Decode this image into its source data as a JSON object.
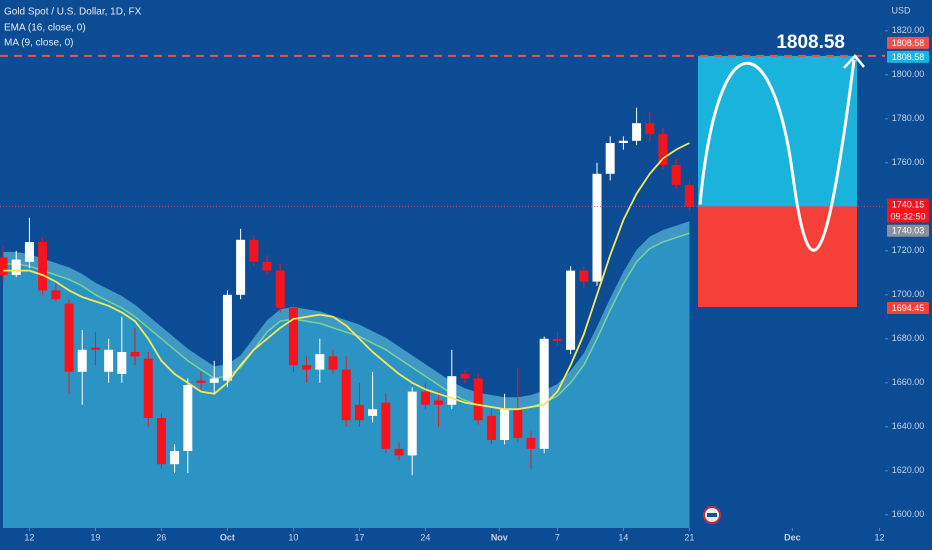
{
  "chart_data": {
    "type": "candlestick",
    "title": "Gold Spot / U.S. Dollar, 1D, FX",
    "indicator_labels": [
      "EMA (16, close, 0)",
      "MA (9, close, 0)"
    ],
    "currency": "USD",
    "up_color": "#ffffff",
    "down_color": "#f7131c",
    "xlim": [
      -0.23,
      66.82
    ],
    "xticks": [
      {
        "value": 2,
        "label": "12"
      },
      {
        "value": 7,
        "label": "19"
      },
      {
        "value": 12,
        "label": "26"
      },
      {
        "value": 17,
        "label": "Oct"
      },
      {
        "value": 22,
        "label": "10"
      },
      {
        "value": 27,
        "label": "17"
      },
      {
        "value": 32,
        "label": "24"
      },
      {
        "value": 37.6,
        "label": "Nov"
      },
      {
        "value": 42,
        "label": "7"
      },
      {
        "value": 47,
        "label": "14"
      },
      {
        "value": 52,
        "label": "21"
      },
      {
        "value": 59.8,
        "label": "Dec"
      },
      {
        "value": 66.4,
        "label": "12"
      }
    ],
    "ylim": [
      1594,
      1834
    ],
    "yticks": [
      {
        "value": 1600,
        "label": "1600.00"
      },
      {
        "value": 1620,
        "label": "1620.00"
      },
      {
        "value": 1640,
        "label": "1640.00"
      },
      {
        "value": 1660,
        "label": "1660.00"
      },
      {
        "value": 1680,
        "label": "1680.00"
      },
      {
        "value": 1700,
        "label": "1700.00"
      },
      {
        "value": 1720,
        "label": "1720.00"
      },
      {
        "value": 1760,
        "label": "1760.00"
      },
      {
        "value": 1780,
        "label": "1780.00"
      },
      {
        "value": 1800,
        "label": "1800.00"
      },
      {
        "value": 1820,
        "label": "1820.00"
      }
    ],
    "open": [
      1717,
      1709,
      1715,
      1724,
      1702,
      1696,
      1665,
      1676,
      1665,
      1664,
      1674,
      1671,
      1644,
      1623,
      1629,
      1661,
      1660,
      1661,
      1700,
      1725,
      1715,
      1711,
      1694,
      1668,
      1666,
      1672,
      1666,
      1650,
      1645,
      1651,
      1630,
      1627,
      1656,
      1652,
      1650,
      1664,
      1662,
      1645,
      1634,
      1648,
      1635,
      1630,
      1680,
      1675,
      1711,
      1706,
      1755,
      1769,
      1770,
      1778,
      1773,
      1759,
      1750
    ],
    "high": [
      1722,
      1720,
      1735,
      1726,
      1705,
      1698,
      1684,
      1683,
      1680,
      1690,
      1685,
      1674,
      1646,
      1632,
      1662,
      1665,
      1670,
      1702,
      1730,
      1727,
      1718,
      1714,
      1696,
      1672,
      1680,
      1675,
      1672,
      1660,
      1665,
      1655,
      1633,
      1658,
      1660,
      1656,
      1675,
      1666,
      1664,
      1648,
      1655,
      1667,
      1638,
      1681,
      1683,
      1713,
      1713,
      1760,
      1772,
      1772,
      1785,
      1783,
      1776,
      1762,
      1752
    ],
    "low": [
      1706,
      1708,
      1712,
      1700,
      1697,
      1655,
      1650,
      1668,
      1660,
      1660,
      1668,
      1640,
      1621,
      1619,
      1619,
      1657,
      1655,
      1658,
      1698,
      1713,
      1709,
      1692,
      1665,
      1660,
      1660,
      1664,
      1640,
      1640,
      1642,
      1628,
      1625,
      1618,
      1648,
      1640,
      1648,
      1660,
      1641,
      1632,
      1632,
      1633,
      1621,
      1628,
      1677,
      1673,
      1703,
      1704,
      1752,
      1766,
      1768,
      1770,
      1757,
      1748,
      1738
    ],
    "close": [
      1709,
      1716,
      1724,
      1702,
      1698,
      1665,
      1675,
      1675,
      1675,
      1674,
      1672,
      1644,
      1623,
      1629,
      1659,
      1660,
      1662,
      1700,
      1725,
      1715,
      1711,
      1694,
      1668,
      1666,
      1673,
      1666,
      1643,
      1643,
      1648,
      1630,
      1627,
      1656,
      1650,
      1650,
      1663,
      1662,
      1643,
      1634,
      1648,
      1635,
      1630,
      1680,
      1679,
      1711,
      1706,
      1755,
      1769,
      1770,
      1778,
      1773,
      1759,
      1750,
      1740.03
    ],
    "ema": {
      "name": "EMA (16, close, 0)",
      "color": "#f4e85a",
      "values": [
        1711,
        1711,
        1711,
        1709,
        1706,
        1702,
        1699,
        1697,
        1695,
        1692,
        1688,
        1680,
        1670,
        1664,
        1660,
        1656,
        1655,
        1660,
        1668,
        1675,
        1680,
        1685,
        1689,
        1690,
        1691,
        1690,
        1686,
        1680,
        1674,
        1669,
        1664,
        1660,
        1657,
        1655,
        1653,
        1651,
        1650,
        1649,
        1648,
        1648,
        1649,
        1650,
        1656,
        1668,
        1682,
        1700,
        1718,
        1734,
        1746,
        1755,
        1762,
        1766,
        1769
      ]
    },
    "ma": {
      "name": "MA (9, close, 0)",
      "color": "#8fe08a",
      "fill": "#2b94c4",
      "band": "#4aa6cc",
      "values": [
        1714,
        1714,
        1713,
        1711,
        1709,
        1707,
        1704,
        1700,
        1697,
        1694,
        1690,
        1685,
        1680,
        1675,
        1670,
        1666,
        1662,
        1663,
        1667,
        1675,
        1683,
        1688,
        1689,
        1688,
        1687,
        1685,
        1683,
        1681,
        1678,
        1675,
        1671,
        1667,
        1663,
        1659,
        1655,
        1652,
        1650,
        1649,
        1648,
        1648,
        1649,
        1651,
        1654,
        1660,
        1668,
        1680,
        1693,
        1705,
        1715,
        1721,
        1724,
        1726,
        1728
      ]
    },
    "projection": {
      "target": 1808.58,
      "entry": 1740.15,
      "stop": 1694.45,
      "target_color": "#19b3dc",
      "stop_color": "#f5403a"
    },
    "last_price": 1740.03,
    "countdown": "09:32:50"
  }
}
